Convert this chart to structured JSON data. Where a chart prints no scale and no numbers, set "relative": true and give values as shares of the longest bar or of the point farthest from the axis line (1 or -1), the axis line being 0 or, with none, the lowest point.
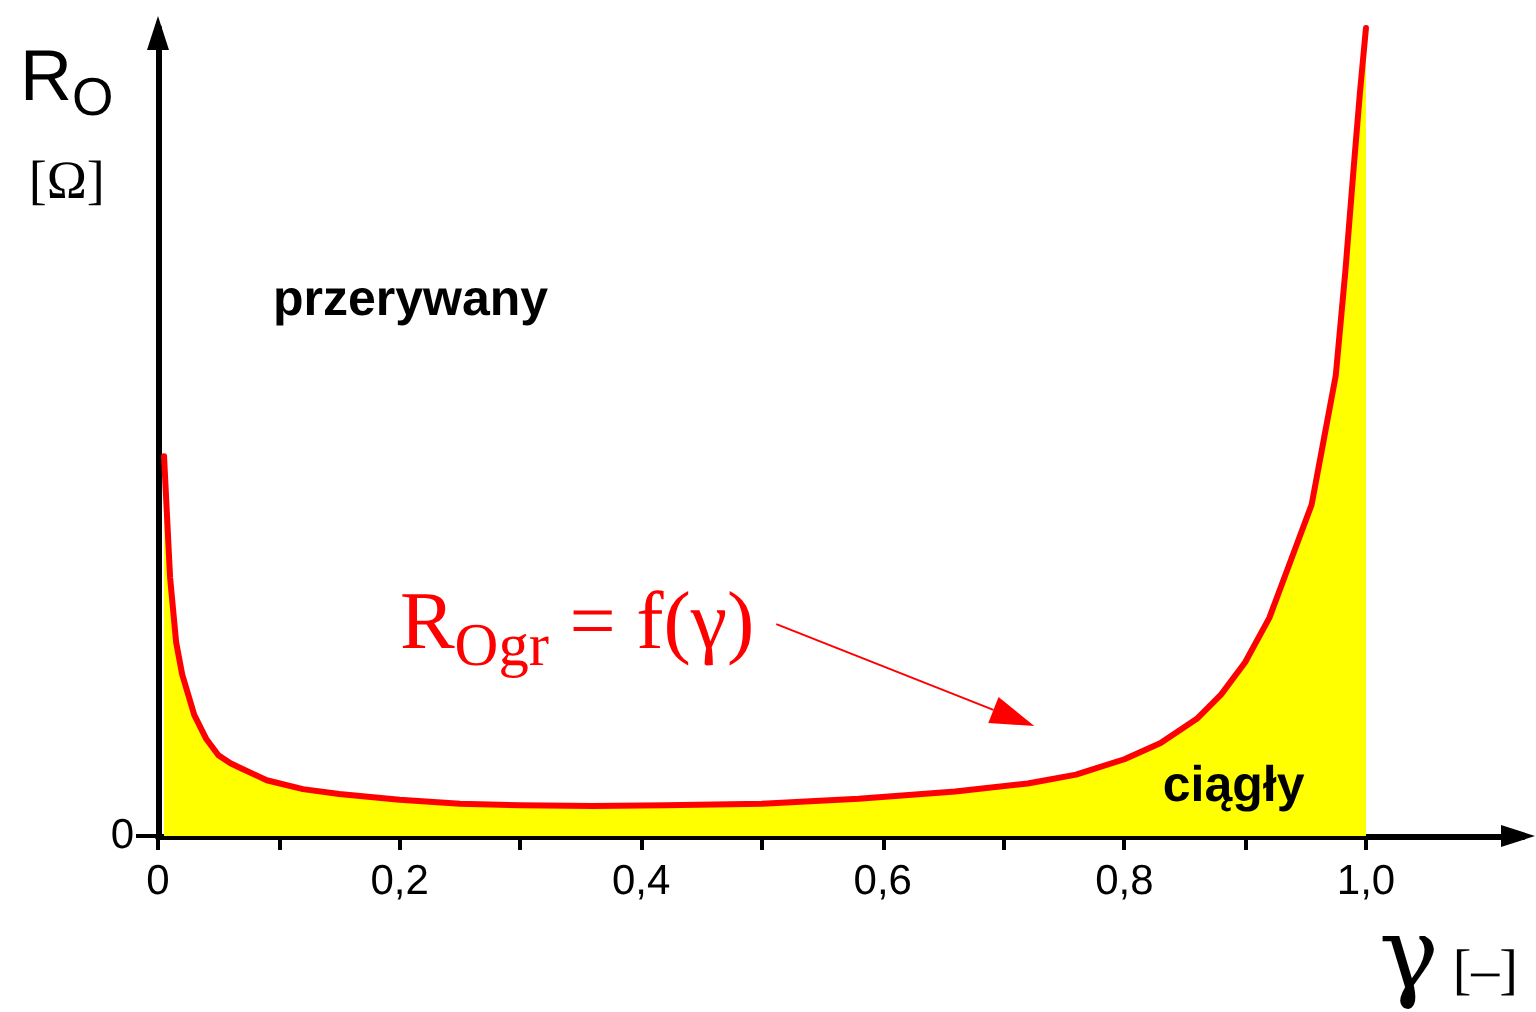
{
  "chart_data": {
    "type": "area",
    "xlabel": "γ [–]",
    "ylabel": "R$_{O}$\n[Ω]",
    "annotations": [
      "przerywany",
      "R$_{Ogr}$ = f(γ)",
      "ciągły",
      "0"
    ],
    "x": [
      0.005,
      0.01,
      0.015,
      0.02,
      0.03,
      0.04,
      0.05,
      0.06,
      0.07,
      0.09,
      0.12,
      0.15,
      0.2,
      0.25,
      0.3,
      0.36,
      0.42,
      0.5,
      0.58,
      0.66,
      0.72,
      0.76,
      0.8,
      0.83,
      0.86,
      0.88,
      0.9,
      0.92,
      0.94,
      0.955,
      0.965,
      0.975,
      0.983,
      0.99,
      0.995,
      1.0
    ],
    "color": "#ff0000",
    "series": [
      {
        "color": "#ffff00",
        "values": [
          0.47,
          0.32,
          0.24,
          0.2,
          0.15,
          0.12,
          0.1,
          0.09,
          0.083,
          0.069,
          0.058,
          0.052,
          0.045,
          0.04,
          0.038,
          0.037,
          0.038,
          0.04,
          0.046,
          0.055,
          0.065,
          0.076,
          0.095,
          0.115,
          0.145,
          0.175,
          0.215,
          0.27,
          0.35,
          0.41,
          0.49,
          0.57,
          0.7,
          0.83,
          0.92,
          1.0
        ]
      }
    ],
    "relative": true,
    "xlim": [
      0,
      1.13
    ],
    "xticks": [
      0,
      {
        "value": 0.1,
        "label": null
      },
      {
        "value": 0.2,
        "label": "0,2"
      },
      {
        "value": 0.3,
        "label": null
      },
      {
        "value": 0.4,
        "label": "0,4"
      },
      {
        "value": 0.5,
        "label": null
      },
      {
        "value": 0.6,
        "label": "0,6"
      },
      {
        "value": 0.7,
        "label": null
      },
      {
        "value": 0.8,
        "label": "0,8"
      },
      {
        "value": 0.9,
        "label": null
      },
      {
        "value": 1.0,
        "label": "1,0"
      }
    ],
    "marker": "none"
  }
}
